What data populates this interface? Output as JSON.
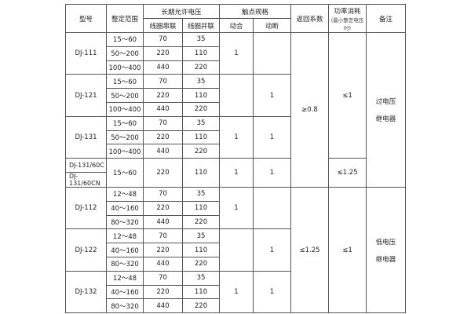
{
  "header": {
    "model": "型号",
    "range": "整定范围",
    "voltage": "长期允许电压",
    "series": "线圈串联",
    "parallel": "线圈并联",
    "contacts": "触点规格",
    "make": "动合",
    "break": "动断",
    "return": "返回系数",
    "power": "功率消耗",
    "power_note": "(最小整定电压时)",
    "remark": "备注"
  },
  "groups": [
    {
      "model": "DJ-111",
      "rows": [
        [
          "15～60",
          "70",
          "35"
        ],
        [
          "50～200",
          "220",
          "110"
        ],
        [
          "100～400",
          "440",
          "220"
        ]
      ],
      "make": "1",
      "break": ""
    },
    {
      "model": "DJ-121",
      "rows": [
        [
          "15～60",
          "70",
          "35"
        ],
        [
          "50～200",
          "220",
          "110"
        ],
        [
          "100～400",
          "440",
          "220"
        ]
      ],
      "make": "",
      "break": "1"
    },
    {
      "model": "DJ-131",
      "rows": [
        [
          "15～60",
          "70",
          "35"
        ],
        [
          "50～200",
          "220",
          "110"
        ],
        [
          "100～400",
          "440",
          "220"
        ]
      ],
      "make": "1",
      "break": "1"
    },
    {
      "models": [
        "DJ-131/60C",
        "DJ-131/60CN"
      ],
      "rows": [
        [
          "15～60",
          "220",
          "110"
        ]
      ],
      "make": "1",
      "break": "1"
    },
    {
      "model": "DJ-112",
      "rows": [
        [
          "12～48",
          "70",
          "35"
        ],
        [
          "40～160",
          "220",
          "110"
        ],
        [
          "80～320",
          "440",
          "220"
        ]
      ],
      "make": "1",
      "break": ""
    },
    {
      "model": "DJ-122",
      "rows": [
        [
          "12～48",
          "70",
          "35"
        ],
        [
          "40～160",
          "220",
          "110"
        ],
        [
          "80～320",
          "440",
          "220"
        ]
      ],
      "make": "",
      "break": "1"
    },
    {
      "model": "DJ-132",
      "rows": [
        [
          "12～48",
          "70",
          "35"
        ],
        [
          "40～160",
          "220",
          "110"
        ],
        [
          "80～320",
          "440",
          "220"
        ]
      ],
      "make": "1",
      "break": "1"
    }
  ],
  "return_coeff": [
    {
      "value": "≥0.8",
      "groups": 4
    },
    {
      "value": "≤1.25",
      "groups": 3
    }
  ],
  "power": [
    {
      "value": "≤1",
      "groups": 3
    },
    {
      "value": "≤1.25",
      "groups": 1
    },
    {
      "value": "≤1",
      "groups": 3
    }
  ],
  "remark": [
    {
      "value": "过电压\n继电器",
      "groups": 4
    },
    {
      "value": "低电压\n继电器",
      "groups": 3
    }
  ]
}
